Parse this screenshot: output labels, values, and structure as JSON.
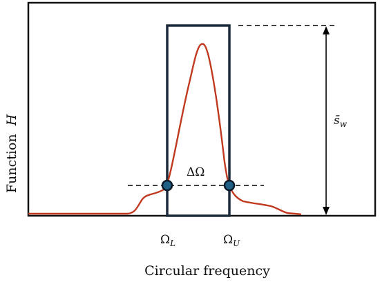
{
  "y_axis_label": "Function",
  "y_axis_symbol": "H",
  "x_axis_label": "Circular frequency",
  "delta_label": "ΔΩ",
  "sw_label": {
    "bar": "s̄",
    "sub": "w"
  },
  "omega_lower": {
    "main": "Ω",
    "sub": "L"
  },
  "omega_upper": {
    "main": "Ω",
    "sub": "U"
  },
  "colors": {
    "curve": "#c0391f",
    "frame": "#1b2a3a",
    "marker_fill": "#1f5f86",
    "marker_stroke": "#0b1a28",
    "dashes": "#000000"
  }
}
